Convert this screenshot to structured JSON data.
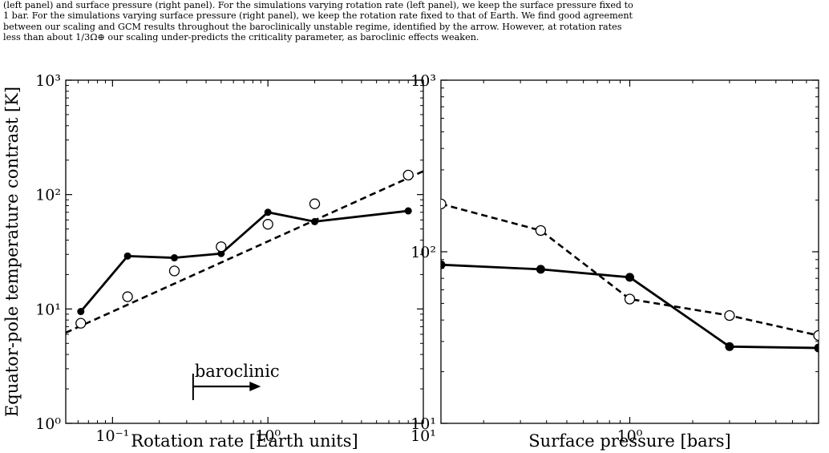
{
  "caption_top": [
    "(left panel) and surface pressure (right panel). For the simulations varying rotation rate (left panel), we keep the surface pressure fixed to",
    "1 bar. For the simulations varying surface pressure (right panel), we keep the rotation rate fixed to that of Earth. We find good agreement",
    "between our scaling and GCM results throughout the baroclinically unstable regime, identified by the arrow. However, at rotation rates",
    "less than about 1/3Ω⊕ our scaling under-predicts the criticality parameter, as baroclinic effects weaken."
  ],
  "caption_bottom": "",
  "chart_data": [
    {
      "type": "line",
      "ylabel": "Equator-pole temperature contrast [K]",
      "xlabel": "Rotation rate [Earth units]",
      "xscale": "log",
      "yscale": "log",
      "xlim": [
        0.05,
        10
      ],
      "ylim": [
        1,
        1000
      ],
      "xticks": [
        {
          "value": 0.1,
          "label": "10⁻¹"
        },
        {
          "value": 1,
          "label": "10⁰"
        },
        {
          "value": 10,
          "label": "10¹"
        }
      ],
      "yticks": [
        {
          "value": 1,
          "label": "10⁰"
        },
        {
          "value": 10,
          "label": "10¹"
        },
        {
          "value": 100,
          "label": "10²"
        },
        {
          "value": 1000,
          "label": "10³"
        }
      ],
      "series": [
        {
          "style": "solid",
          "marker": "filled-circle",
          "x": [
            0.0625,
            0.125,
            0.25,
            0.5,
            1,
            2,
            8
          ],
          "y": [
            9.5,
            29,
            28,
            30.5,
            70,
            58,
            72
          ]
        },
        {
          "style": "dashed",
          "marker": "open-circle",
          "x": [
            0.0625,
            0.125,
            0.25,
            0.5,
            1,
            2,
            8
          ],
          "y": [
            7.5,
            12.8,
            21.5,
            35,
            55,
            83,
            148
          ],
          "dashed_extension": {
            "x": [
              0.05,
              10
            ],
            "y": [
              6.2,
              160
            ]
          }
        }
      ],
      "annotation": {
        "text": "baroclinic",
        "arrow_from_x": 0.33,
        "arrow_to_x": 0.9,
        "y": 2.1
      }
    },
    {
      "type": "line",
      "ylabel": "",
      "xlabel": "Surface pressure [bars]",
      "xscale": "log",
      "yscale": "log",
      "xlim": [
        0.125,
        8
      ],
      "ylim": [
        10,
        1000
      ],
      "xticks": [
        {
          "value": 1,
          "label": "10⁰"
        }
      ],
      "yticks": [
        {
          "value": 10,
          "label": "10¹"
        },
        {
          "value": 100,
          "label": "10²"
        },
        {
          "value": 1000,
          "label": "10³"
        }
      ],
      "series": [
        {
          "style": "solid",
          "marker": "filled-circle",
          "x": [
            0.125,
            0.375,
            1,
            3,
            8
          ],
          "y": [
            84,
            79,
            71,
            28,
            27.5
          ]
        },
        {
          "style": "dashed",
          "marker": "open-circle",
          "x": [
            0.125,
            0.375,
            1,
            3,
            8
          ],
          "y": [
            190,
            133,
            53,
            42.5,
            32.5
          ]
        }
      ]
    }
  ]
}
